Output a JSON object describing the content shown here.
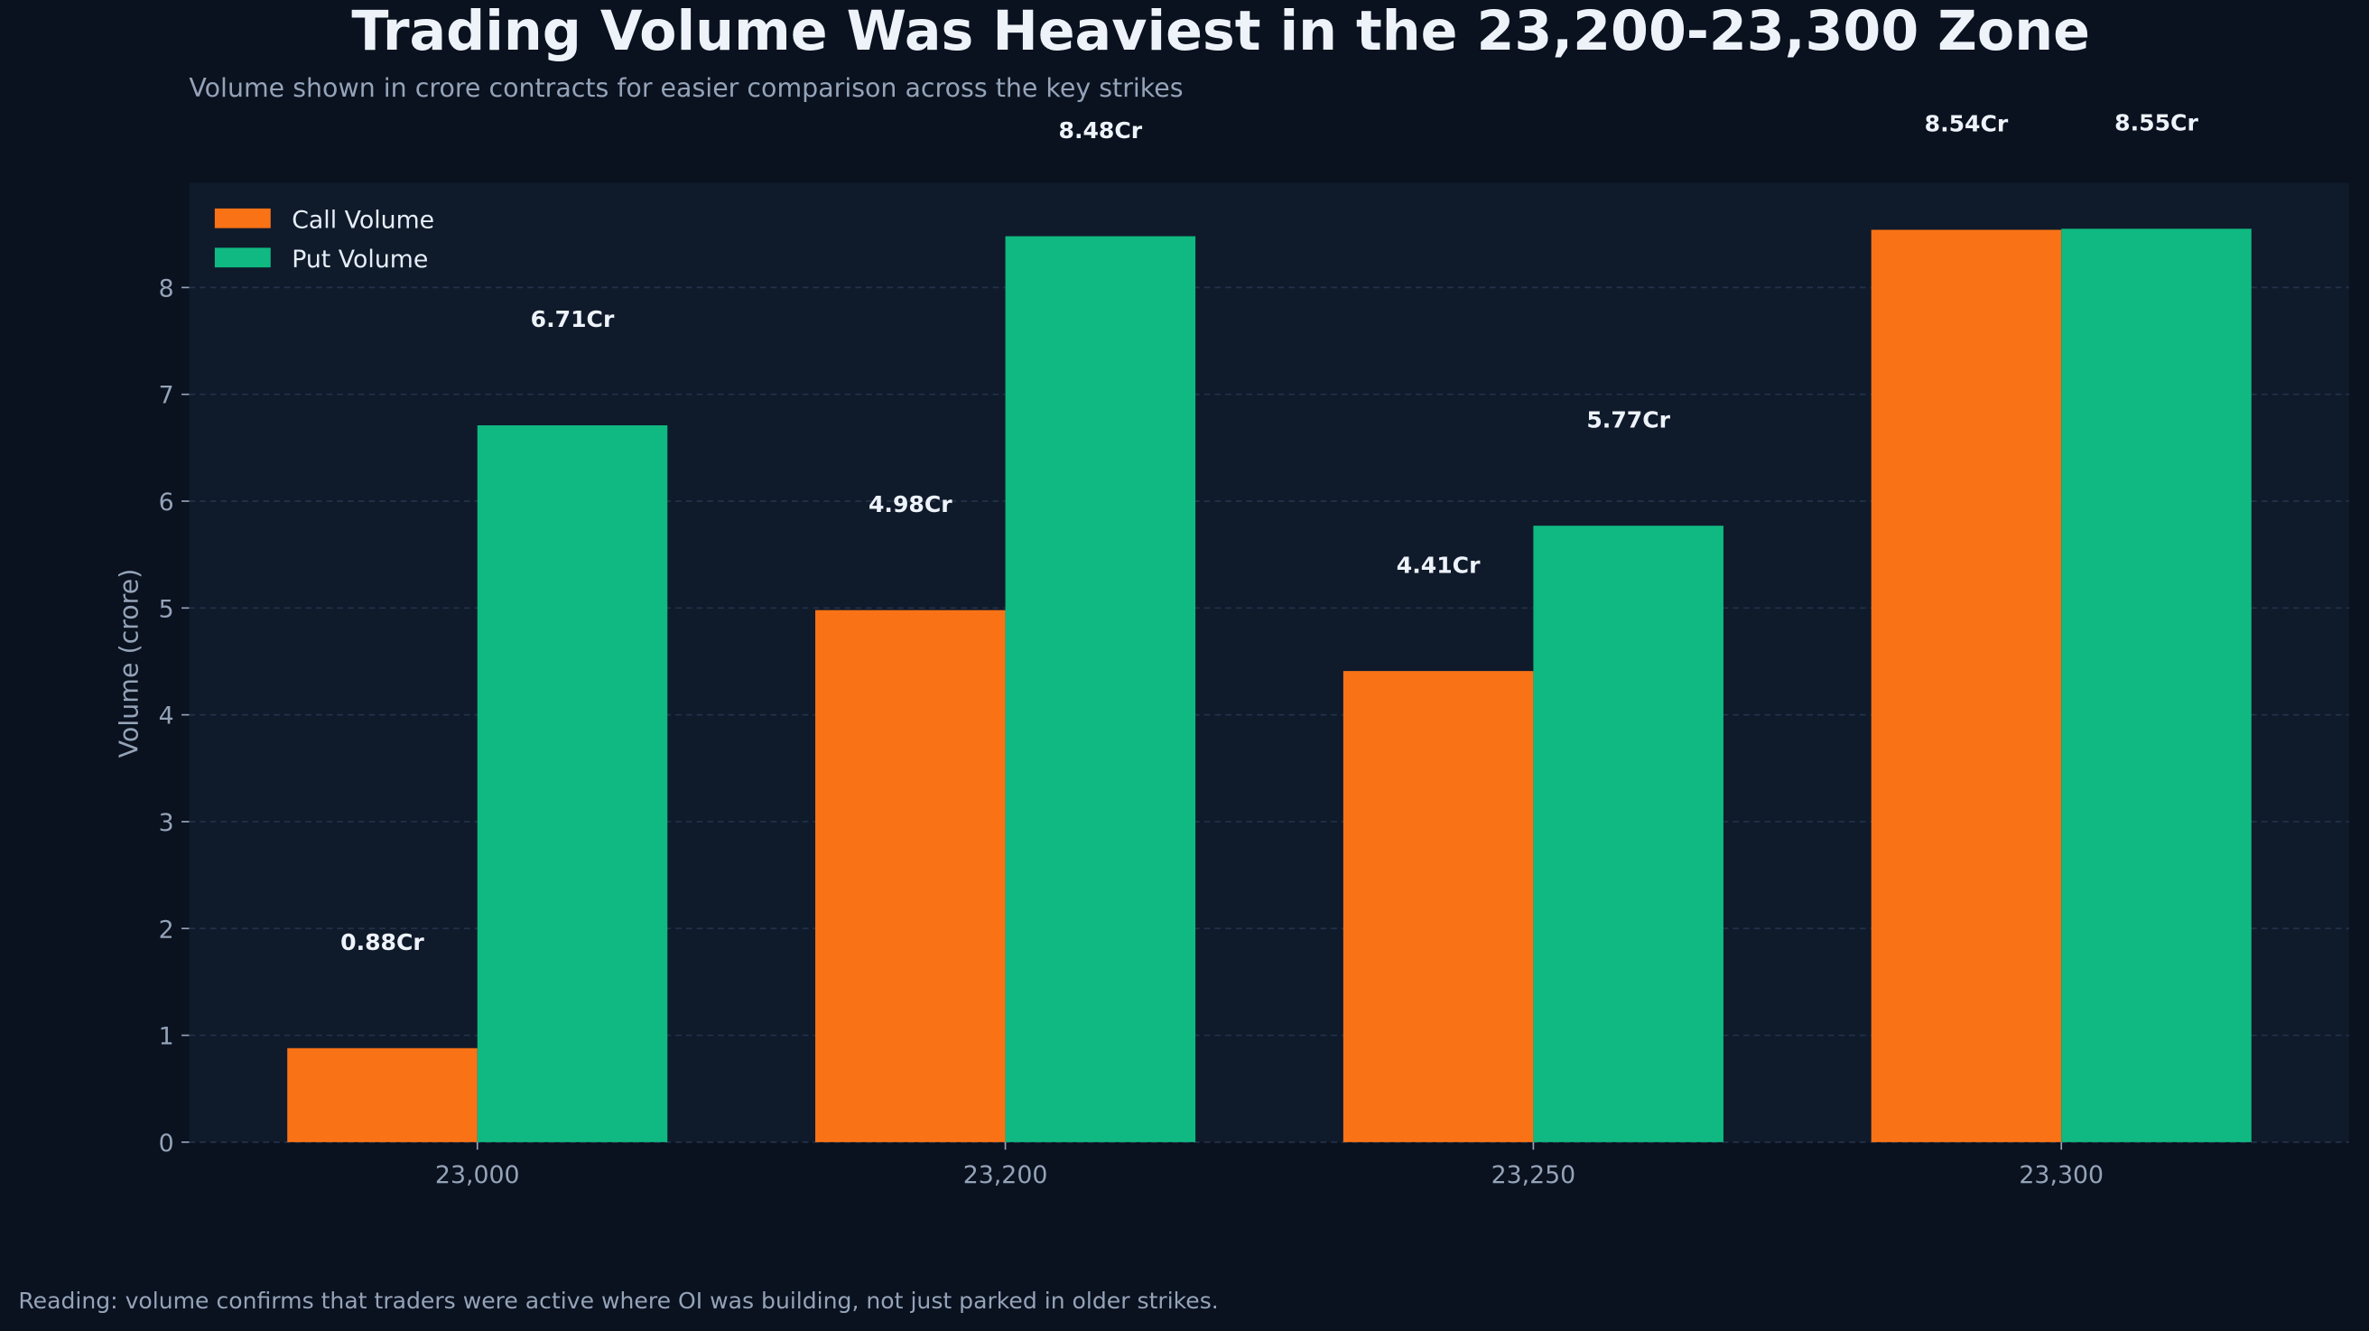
{
  "chart_data": {
    "type": "bar",
    "title": "Trading Volume Was Heaviest in the 23,200-23,300 Zone",
    "subtitle": "Volume shown in crore contracts for easier comparison across the key strikes",
    "xlabel": "",
    "ylabel": "Volume (crore)",
    "categories": [
      "23,000",
      "23,200",
      "23,250",
      "23,300"
    ],
    "series": [
      {
        "name": "Call Volume",
        "color": "#f97316",
        "values": [
          0.88,
          4.98,
          4.41,
          8.54
        ],
        "labels": [
          "0.88Cr",
          "4.98Cr",
          "4.41Cr",
          "8.54Cr"
        ]
      },
      {
        "name": "Put Volume",
        "color": "#10b981",
        "values": [
          6.71,
          8.48,
          5.77,
          8.55
        ],
        "labels": [
          "6.71Cr",
          "8.48Cr",
          "5.77Cr",
          "8.55Cr"
        ]
      }
    ],
    "yticks": [
      "0",
      "1",
      "2",
      "3",
      "4",
      "5",
      "6",
      "7",
      "8"
    ],
    "ylim": [
      0,
      8.98
    ],
    "grid": "horizontal dashed",
    "legend": "top-left"
  },
  "footer": "Reading: volume confirms that traders were active where OI was building, not just parked in older strikes.",
  "colors": {
    "background": "#0a111f",
    "plot_background": "#0f1a2b",
    "text": "#eef3fa",
    "muted": "#94a3b8"
  }
}
